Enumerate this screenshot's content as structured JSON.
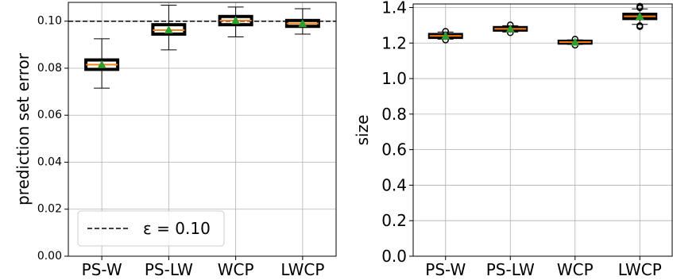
{
  "chart_data": [
    {
      "type": "box",
      "ylabel": "prediction set error",
      "categories": [
        "PS-W",
        "PS-LW",
        "WCP",
        "LWCP"
      ],
      "ylim": [
        0,
        0.108
      ],
      "yticks": [
        "0.00",
        "0.02",
        "0.04",
        "0.06",
        "0.08",
        "0.10"
      ],
      "grid": true,
      "boxes": [
        {
          "whisker_low": 0.0715,
          "q1": 0.0795,
          "median": 0.0815,
          "q3": 0.0835,
          "whisker_high": 0.0925,
          "mean": 0.0815,
          "outliers": []
        },
        {
          "whisker_low": 0.0878,
          "q1": 0.0945,
          "median": 0.0962,
          "q3": 0.0985,
          "whisker_high": 0.1068,
          "mean": 0.0963,
          "outliers": []
        },
        {
          "whisker_low": 0.0933,
          "q1": 0.0985,
          "median": 0.1003,
          "q3": 0.102,
          "whisker_high": 0.106,
          "mean": 0.1003,
          "outliers": []
        },
        {
          "whisker_low": 0.0945,
          "q1": 0.0978,
          "median": 0.099,
          "q3": 0.1003,
          "whisker_high": 0.1053,
          "mean": 0.099,
          "outliers": []
        }
      ],
      "reference_line": {
        "y": 0.1,
        "style": "dashed",
        "label": "ε = 0.10"
      },
      "legend": {
        "position": "lower-left",
        "entries": [
          "ε = 0.10"
        ]
      },
      "colors": {
        "median": "#ff7f0e",
        "mean": "#2ca02c",
        "box": "#000000",
        "grid": "#b0b0b0"
      }
    },
    {
      "type": "box",
      "ylabel": "size",
      "categories": [
        "PS-W",
        "PS-LW",
        "WCP",
        "LWCP"
      ],
      "ylim": [
        0,
        1.42
      ],
      "yticks": [
        "0.0",
        "0.2",
        "0.4",
        "0.6",
        "0.8",
        "1.0",
        "1.2",
        "1.4"
      ],
      "grid": true,
      "boxes": [
        {
          "whisker_low": 1.222,
          "q1": 1.232,
          "median": 1.24,
          "q3": 1.248,
          "whisker_high": 1.262,
          "mean": 1.24,
          "outliers": [
            1.217,
            1.266
          ]
        },
        {
          "whisker_low": 1.262,
          "q1": 1.273,
          "median": 1.28,
          "q3": 1.287,
          "whisker_high": 1.298,
          "mean": 1.28,
          "outliers": [
            1.258,
            1.302
          ]
        },
        {
          "whisker_low": 1.192,
          "q1": 1.2,
          "median": 1.205,
          "q3": 1.21,
          "whisker_high": 1.218,
          "mean": 1.205,
          "outliers": [
            1.188,
            1.222
          ]
        },
        {
          "whisker_low": 1.305,
          "q1": 1.338,
          "median": 1.35,
          "q3": 1.362,
          "whisker_high": 1.392,
          "mean": 1.35,
          "outliers": [
            1.292,
            1.298,
            1.398,
            1.403,
            1.407
          ]
        }
      ],
      "legend": null,
      "colors": {
        "median": "#ff7f0e",
        "mean": "#2ca02c",
        "box": "#000000",
        "grid": "#b0b0b0"
      }
    }
  ]
}
